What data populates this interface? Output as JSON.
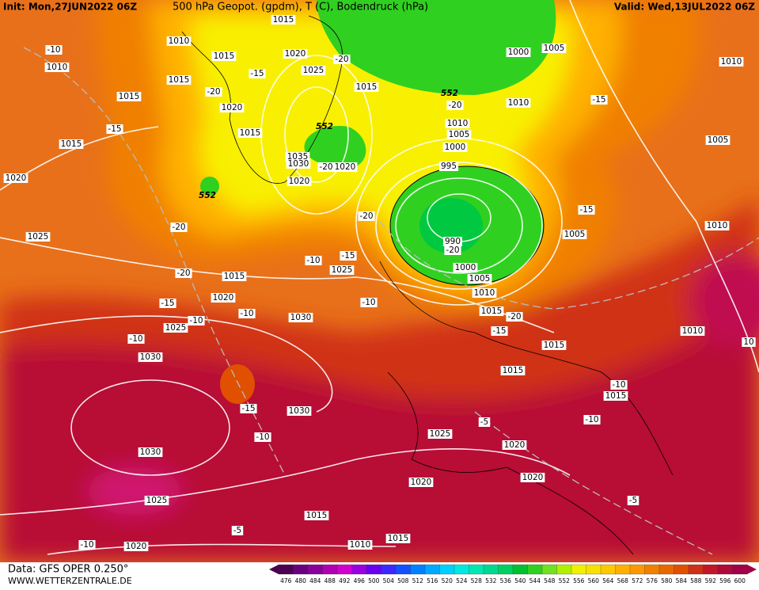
{
  "header": {
    "init": "Init: Mon,27JUN2022 06Z",
    "title": "500 hPa Geopot. (gpdm), T (C), Bodendruck (hPa)",
    "valid": "Valid: Wed,13JUL2022 06Z"
  },
  "footer": {
    "data": "Data: GFS OPER 0.250°",
    "site": "WWW.WETTERZENTRALE.DE"
  },
  "scale": {
    "labels": [
      "476",
      "480",
      "484",
      "488",
      "492",
      "496",
      "500",
      "504",
      "508",
      "512",
      "516",
      "520",
      "524",
      "528",
      "532",
      "536",
      "540",
      "544",
      "548",
      "552",
      "556",
      "560",
      "564",
      "568",
      "572",
      "576",
      "580",
      "584",
      "588",
      "592",
      "596",
      "600"
    ],
    "colors": [
      "#4b0050",
      "#6a007f",
      "#8a0099",
      "#b000b0",
      "#d000d0",
      "#9a00e0",
      "#6a00f0",
      "#3c28ff",
      "#1450ff",
      "#0080ff",
      "#00a8ff",
      "#00d0ff",
      "#00e8e0",
      "#00e8b0",
      "#00d890",
      "#00d060",
      "#00c030",
      "#30d020",
      "#70e020",
      "#b0f000",
      "#f0f000",
      "#f8e000",
      "#ffc800",
      "#ffb000",
      "#ff9800",
      "#f08000",
      "#e86800",
      "#e05000",
      "#d03018",
      "#c01828",
      "#b00838",
      "#a00048"
    ]
  },
  "map_labels": [
    "1015",
    "1010",
    "-10",
    "1010",
    "1015",
    "1020",
    "-20",
    "1000",
    "1005",
    "1010",
    "1025",
    "-15",
    "1015",
    "1015",
    "-20",
    "1020",
    "1015",
    "552",
    "-20",
    "1010",
    "-15",
    "-15",
    "1015",
    "552",
    "1010",
    "1005",
    "1015",
    "1000",
    "1035",
    "1030",
    "-20",
    "1020",
    "995",
    "1005",
    "1020",
    "1020",
    "552",
    "-20",
    "-15",
    "-20",
    "1010",
    "1005",
    "1025",
    "990",
    "-20",
    "-15",
    "-10",
    "1025",
    "1000",
    "-20",
    "1015",
    "1005",
    "1010",
    "1020",
    "-15",
    "-10",
    "1015",
    "-10",
    "-20",
    "1030",
    "1025",
    "-10",
    "-15",
    "1010",
    "-10",
    "1015",
    "10",
    "1030",
    "1015",
    "-10",
    "1015",
    "-15",
    "1030",
    "-10",
    "-5",
    "1025",
    "-10",
    "1020",
    "1030",
    "1020",
    "1020",
    "-5",
    "1025",
    "1015",
    "-5",
    "1015",
    "-10",
    "1020",
    "1010"
  ]
}
